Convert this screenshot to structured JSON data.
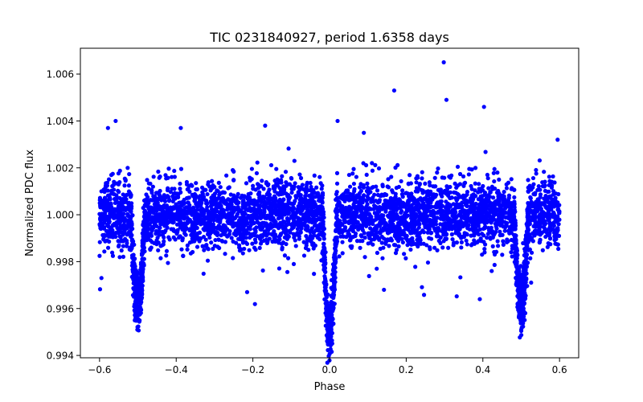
{
  "chart_data": {
    "type": "scatter",
    "title": "TIC 0231840927, period 1.6358 days",
    "xlabel": "Phase",
    "ylabel": "Normalized PDC flux",
    "xlim": [
      -0.65,
      0.65
    ],
    "ylim": [
      0.9939,
      1.0071
    ],
    "x_ticks": [
      -0.6,
      -0.4,
      -0.2,
      0.0,
      0.2,
      0.4,
      0.6
    ],
    "x_tick_labels": [
      "−0.6",
      "−0.4",
      "−0.2",
      "0.0",
      "0.2",
      "0.4",
      "0.6"
    ],
    "y_ticks": [
      0.994,
      0.996,
      0.998,
      1.0,
      1.002,
      1.004,
      1.006
    ],
    "y_tick_labels": [
      "0.994",
      "0.996",
      "0.998",
      "1.000",
      "1.002",
      "1.004",
      "1.006"
    ],
    "grid": false,
    "legend": "none",
    "marker_color": "#0000ff",
    "phase_range": [
      -0.6,
      0.6
    ],
    "baseline_flux": 1.0,
    "baseline_scatter": 0.0007,
    "primary_eclipse": {
      "phase": 0.0,
      "depth": 0.0048,
      "half_width": 0.018
    },
    "secondary_eclipse": {
      "phases": [
        -0.5,
        0.5
      ],
      "depth": 0.0039,
      "half_width": 0.018
    },
    "outliers": [
      {
        "x": 0.298,
        "y": 1.0065
      },
      {
        "x": -0.558,
        "y": 1.004
      },
      {
        "x": 0.403,
        "y": 1.0046
      },
      {
        "x": -0.388,
        "y": 1.0037
      },
      {
        "x": 0.021,
        "y": 1.004
      },
      {
        "x": 0.392,
        "y": 0.9964
      },
      {
        "x": -0.578,
        "y": 1.0037
      },
      {
        "x": -0.168,
        "y": 1.0038
      },
      {
        "x": 0.595,
        "y": 1.0032
      },
      {
        "x": 0.305,
        "y": 1.0049
      },
      {
        "x": -0.595,
        "y": 0.9973
      },
      {
        "x": -0.215,
        "y": 0.9967
      },
      {
        "x": 0.142,
        "y": 0.9968
      }
    ]
  }
}
